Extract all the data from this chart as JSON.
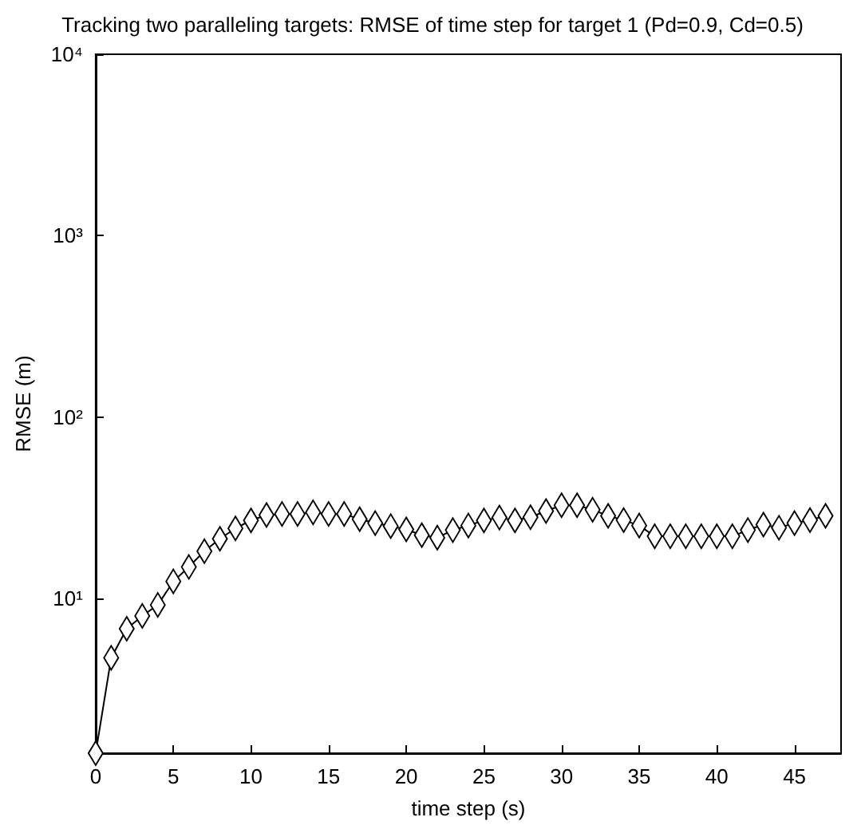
{
  "chart_data": {
    "type": "line",
    "title": "Tracking two paralleling targets: RMSE of time step for target 1 (Pd=0.9, Cd=0.5)",
    "xlabel": "time step (s)",
    "ylabel": "RMSE (m)",
    "x": [
      0,
      1,
      2,
      3,
      4,
      5,
      6,
      7,
      8,
      9,
      10,
      11,
      12,
      13,
      14,
      15,
      16,
      17,
      18,
      19,
      20,
      21,
      22,
      23,
      24,
      25,
      26,
      27,
      28,
      29,
      30,
      31,
      32,
      33,
      34,
      35,
      36,
      37,
      38,
      39,
      40,
      41,
      42,
      43,
      44,
      45,
      46,
      47
    ],
    "series": [
      {
        "color": "#000000",
        "values": [
          1.4,
          4.7,
          6.8,
          8.0,
          9.2,
          12.4,
          14.9,
          18.2,
          21.3,
          24.3,
          26.9,
          28.8,
          29.2,
          29.2,
          29.8,
          29.2,
          29.2,
          27.3,
          26,
          25,
          24,
          22.3,
          21.6,
          23.8,
          25.2,
          26.9,
          27.9,
          26.9,
          28,
          30.3,
          32.6,
          32.6,
          30.8,
          28.5,
          27,
          25.2,
          22,
          22,
          22,
          22,
          22,
          22,
          23.8,
          25.5,
          24.5,
          26,
          27,
          28.5
        ]
      }
    ],
    "xlim": [
      0,
      48
    ],
    "xticks": [
      0,
      5,
      10,
      15,
      20,
      25,
      30,
      35,
      40,
      45
    ],
    "ylim": [
      1.4,
      10000
    ],
    "yticks": [
      {
        "value": 10,
        "label": "10¹"
      },
      {
        "value": 100,
        "label": "10²"
      },
      {
        "value": 1000,
        "label": "10³"
      },
      {
        "value": 10000,
        "label": "10⁴"
      }
    ],
    "log": "y",
    "grid": false,
    "marker": "diamond",
    "line_style": "solid"
  }
}
